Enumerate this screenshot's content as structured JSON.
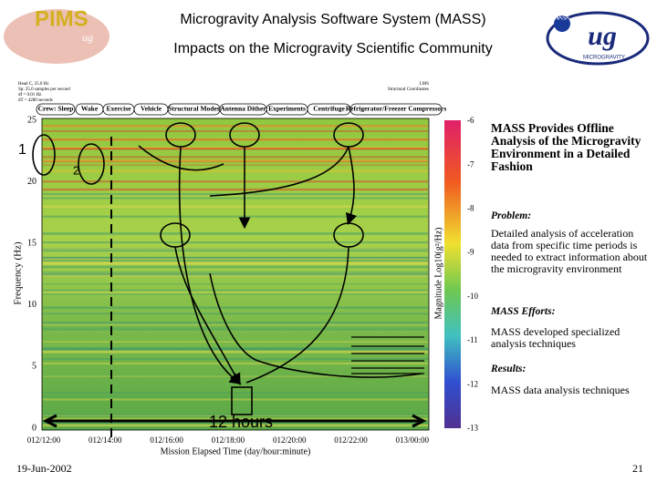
{
  "header": {
    "title_lines": [
      "Microgravity Analysis Software System (MASS)",
      "Impacts on the Microgravity Scientific Community"
    ],
    "left_logo": {
      "name": "PIMS",
      "mark": "ug"
    },
    "right_logo": {
      "agency": "NASA",
      "caption": "MICROGRAVITY"
    }
  },
  "spectrogram": {
    "info_left": [
      "Head C, 25.0 Hz",
      "Sp: 25.0 samples per second",
      "df = 0.01 Hz",
      "dT = 4280 seconds"
    ],
    "info_right": [
      "LMS",
      "Structural Coordinates"
    ],
    "source_labels": [
      "Crew: Sleep",
      "Wake",
      "Exercise",
      "Vehicle",
      "Structural Modes",
      "Antenna Dither",
      "Experiments",
      "Centrifuge",
      "Refrigerator/Freezer Compressors"
    ],
    "y_axis_label": "Frequency (Hz)",
    "y_ticks": [
      "0",
      "5",
      "10",
      "15",
      "20",
      "25"
    ],
    "x_axis_label": "Mission Elapsed Time (day/hour:minute)",
    "x_ticks": [
      "012/12:00",
      "012/14:00",
      "012/16:00",
      "012/18:00",
      "012/20:00",
      "012/22:00",
      "013/00:00"
    ],
    "colorbar_label": "Magnitude Log10(g²/Hz)",
    "colorbar_ticks": [
      "-6",
      "-7",
      "-8",
      "-9",
      "-10",
      "-11",
      "-12",
      "-13"
    ],
    "callouts": [
      "1",
      "2"
    ],
    "span_label": "12 hours"
  },
  "sidebar": {
    "heading": "MASS Provides Offline Analysis of the Microgravity Environment in a Detailed Fashion",
    "sections": [
      {
        "title": "Problem:",
        "body": "Detailed analysis of acceleration data from specific time periods is needed to extract information about the microgravity environment"
      },
      {
        "title": "MASS Efforts:",
        "body": "MASS developed specialized analysis techniques"
      },
      {
        "title": "Results:",
        "body": "MASS data analysis techniques"
      }
    ]
  },
  "footer": {
    "date": "19-Jun-2002",
    "page": "21"
  }
}
